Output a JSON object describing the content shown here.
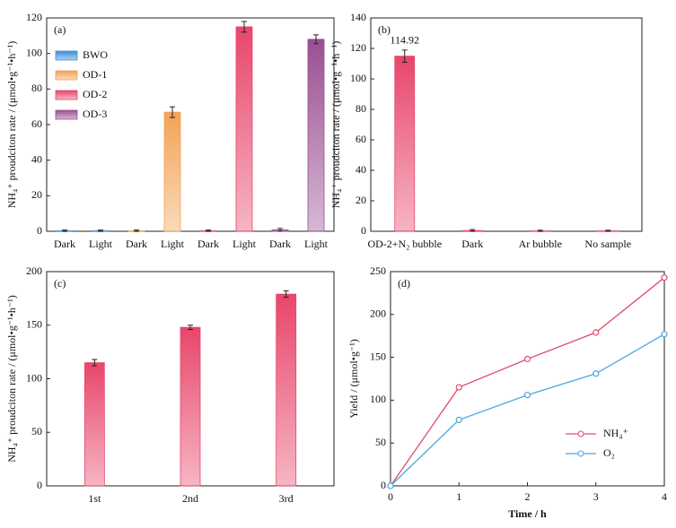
{
  "chart_data": [
    {
      "type": "bar",
      "label": "(a)",
      "y_label": "NH₄⁺ proudciton rate / (μmol•g⁻¹•h⁻¹)",
      "categories": [
        "Dark",
        "Light",
        "Dark",
        "Light",
        "Dark",
        "Light",
        "Dark",
        "Light"
      ],
      "series": [
        {
          "name": "BWO",
          "color": "#3a8fd8",
          "values": [
            0.3,
            0.3,
            null,
            null,
            null,
            null,
            null,
            null
          ],
          "errors": [
            0.4,
            0.4,
            null,
            null,
            null,
            null,
            null,
            null
          ]
        },
        {
          "name": "OD-1",
          "color": "#f2a355",
          "values": [
            null,
            null,
            0.3,
            67,
            null,
            null,
            null,
            null
          ],
          "errors": [
            null,
            null,
            0.4,
            3,
            null,
            null,
            null,
            null
          ]
        },
        {
          "name": "OD-2",
          "color": "#e8466b",
          "values": [
            null,
            null,
            null,
            null,
            0.3,
            115,
            null,
            null
          ],
          "errors": [
            null,
            null,
            null,
            null,
            0.4,
            3,
            null,
            null
          ]
        },
        {
          "name": "OD-3",
          "color": "#9a4f92",
          "values": [
            null,
            null,
            null,
            null,
            null,
            null,
            0.8,
            108
          ],
          "errors": [
            null,
            null,
            null,
            null,
            null,
            null,
            0.8,
            2.5
          ]
        }
      ],
      "ylim": [
        0,
        120
      ],
      "yticks": [
        0,
        20,
        40,
        60,
        80,
        100,
        120
      ],
      "legend": "upper left"
    },
    {
      "type": "bar",
      "label": "(b)",
      "y_label": "NH₄⁺ proudciton rate / (μmol•g⁻¹•h⁻¹)",
      "categories": [
        "OD-2+N₂ bubble",
        "Dark",
        "Ar bubble",
        "No sample"
      ],
      "values": [
        114.92,
        0.5,
        0.3,
        0.3
      ],
      "errors": [
        4,
        0.6,
        0.4,
        0.4
      ],
      "value_labels": [
        "114.92",
        null,
        null,
        null
      ],
      "color": "#e8466b",
      "ylim": [
        0,
        140
      ],
      "yticks": [
        0,
        20,
        40,
        60,
        80,
        100,
        120,
        140
      ]
    },
    {
      "type": "bar",
      "label": "(c)",
      "y_label": "NH₄⁺ proudciton rate / (μmol•g⁻¹•h⁻¹)",
      "categories": [
        "1st",
        "2nd",
        "3rd"
      ],
      "values": [
        115,
        148,
        179
      ],
      "errors": [
        3,
        2,
        3
      ],
      "color": "#e8466b",
      "ylim": [
        0,
        200
      ],
      "yticks": [
        0,
        50,
        100,
        150,
        200
      ]
    },
    {
      "type": "line",
      "label": "(d)",
      "x_label": "Time / h",
      "y_label": "Yield / (μmol•g⁻¹)",
      "x": [
        0,
        1,
        2,
        3,
        4
      ],
      "series": [
        {
          "name": "NH₄⁺",
          "color": "#e14b6d",
          "values": [
            0,
            115,
            148,
            179,
            243
          ]
        },
        {
          "name": "O₂",
          "color": "#4aa8e0",
          "values": [
            0,
            77,
            106,
            131,
            177
          ]
        }
      ],
      "xlim": [
        0,
        4
      ],
      "xticks": [
        0,
        1,
        2,
        3,
        4
      ],
      "ylim": [
        0,
        250
      ],
      "yticks": [
        0,
        50,
        100,
        150,
        200,
        250
      ],
      "legend": "lower right"
    }
  ]
}
